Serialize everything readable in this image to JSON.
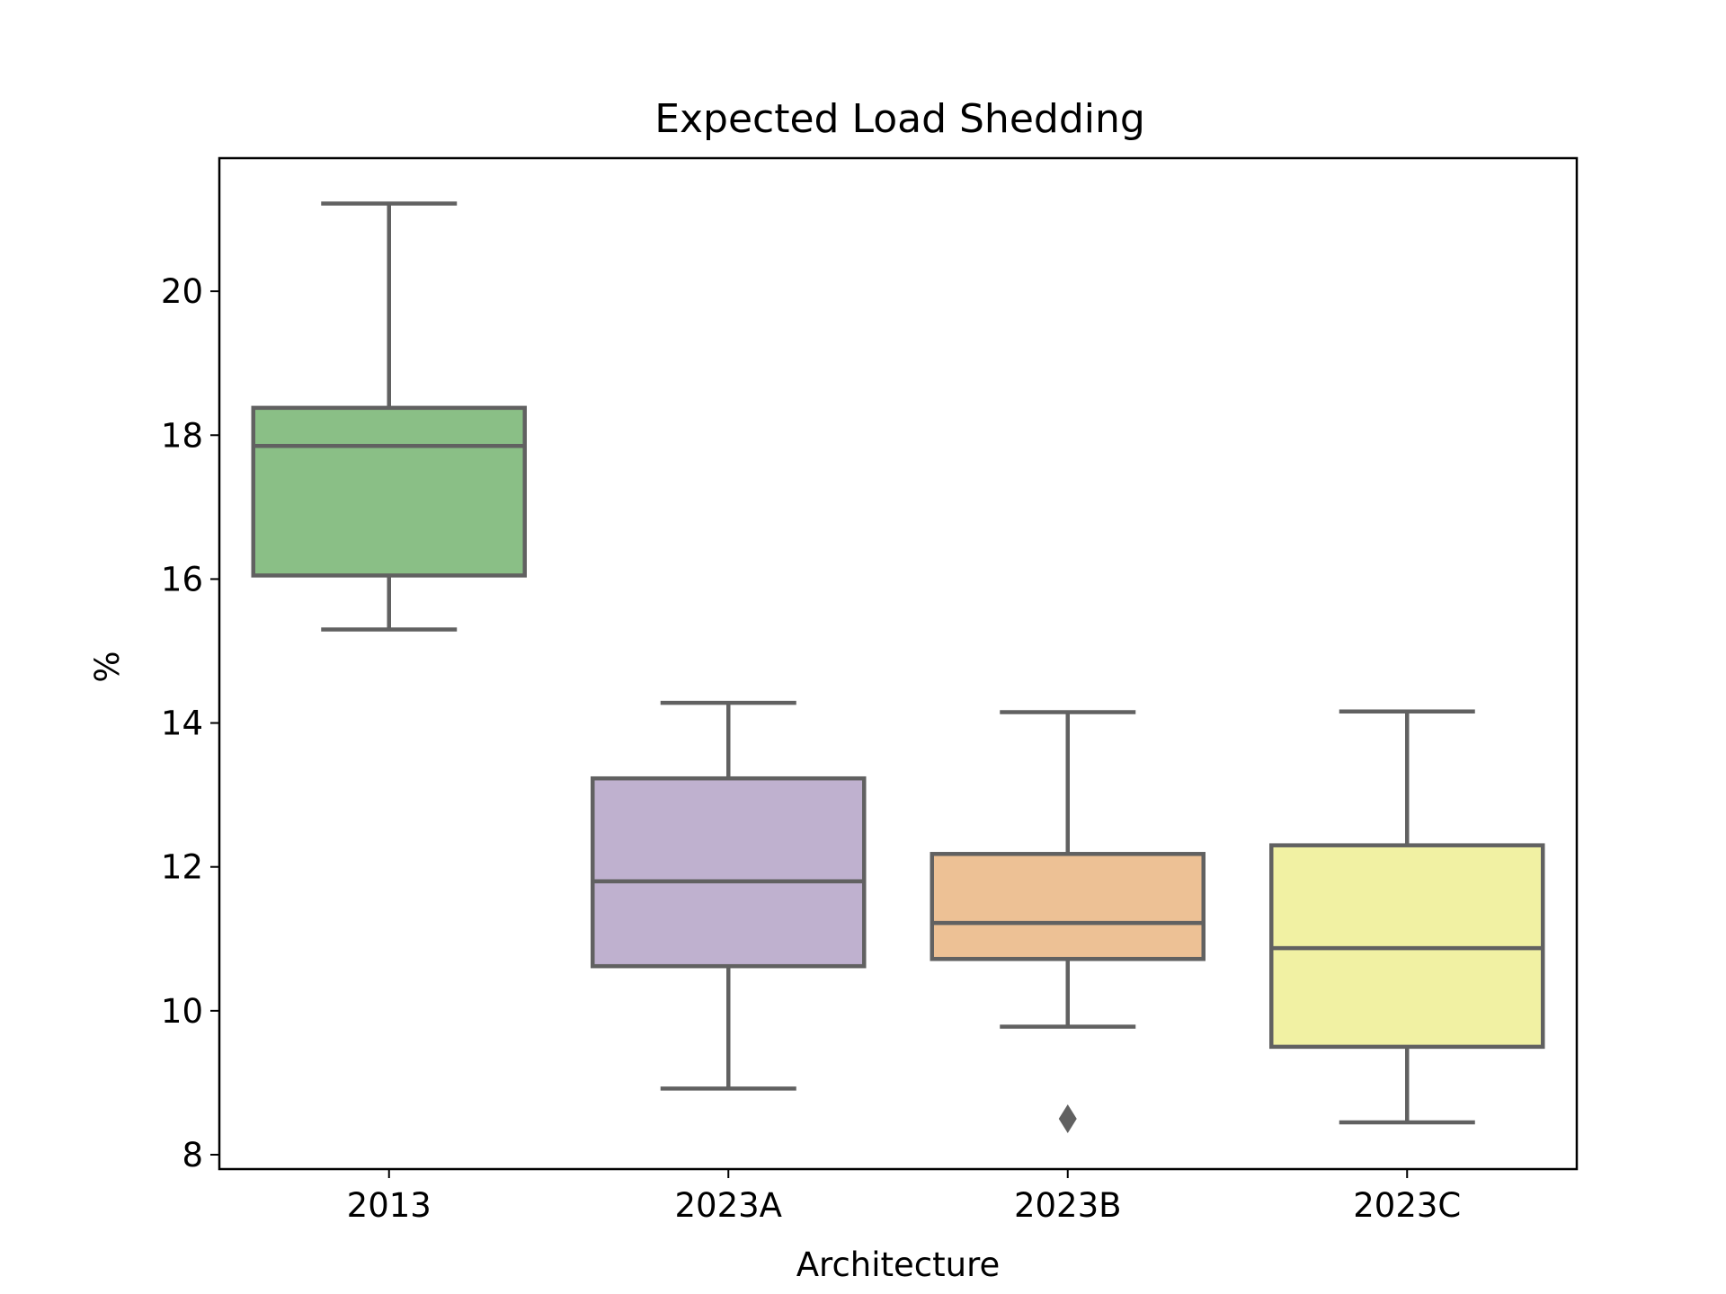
{
  "chart_data": {
    "type": "box",
    "title": "Expected Load Shedding",
    "xlabel": "Architecture",
    "ylabel": "%",
    "ylim": [
      7.8,
      21.85
    ],
    "yticks": [
      8,
      10,
      12,
      14,
      16,
      18,
      20
    ],
    "grid": false,
    "categories": [
      "2013",
      "2023A",
      "2023B",
      "2023C"
    ],
    "boxes": [
      {
        "category": "2013",
        "whisker_low": 15.3,
        "q1": 16.05,
        "median": 17.85,
        "q3": 18.38,
        "whisker_high": 21.22,
        "fliers": [],
        "color": "#8abf86"
      },
      {
        "category": "2023A",
        "whisker_low": 8.92,
        "q1": 10.62,
        "median": 11.8,
        "q3": 13.23,
        "whisker_high": 14.28,
        "fliers": [],
        "color": "#bfb1cf"
      },
      {
        "category": "2023B",
        "whisker_low": 9.78,
        "q1": 10.72,
        "median": 11.22,
        "q3": 12.18,
        "whisker_high": 14.15,
        "fliers": [
          8.5
        ],
        "color": "#edc195"
      },
      {
        "category": "2023C",
        "whisker_low": 8.45,
        "q1": 9.5,
        "median": 10.87,
        "q3": 12.3,
        "whisker_high": 14.16,
        "fliers": [],
        "color": "#f1f1a3"
      }
    ],
    "line_color": "#616161"
  }
}
